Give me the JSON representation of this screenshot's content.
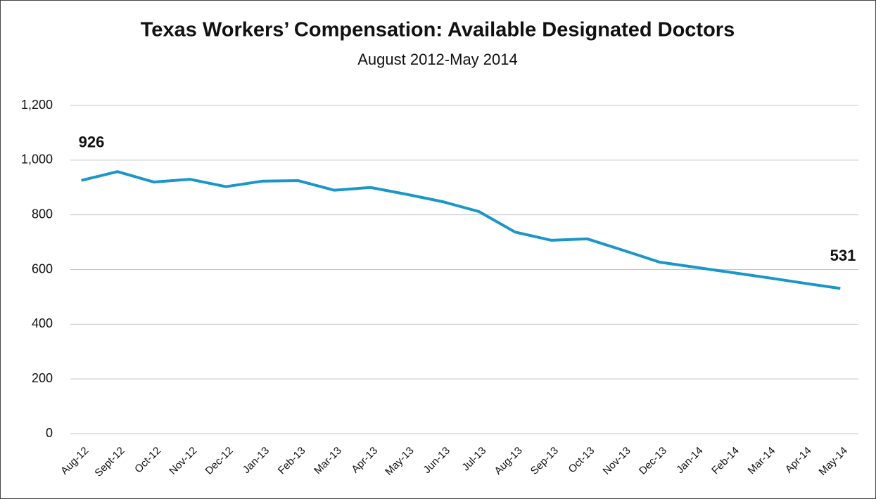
{
  "chart_data": {
    "type": "line",
    "title": "Texas Workers’ Compensation: Available Designated Doctors",
    "subtitle": "August 2012-May 2014",
    "categories": [
      "Aug-12",
      "Sept-12",
      "Oct-12",
      "Nov-12",
      "Dec-12",
      "Jan-13",
      "Feb-13",
      "Mar-13",
      "Apr-13",
      "May-13",
      "Jun-13",
      "Jul-13",
      "Aug-13",
      "Sep-13",
      "Oct-13",
      "Nov-13",
      "Dec-13",
      "Jan-14",
      "Feb-14",
      "Mar-14",
      "Apr-14",
      "May-14"
    ],
    "values": [
      926,
      958,
      920,
      930,
      903,
      923,
      925,
      890,
      900,
      875,
      848,
      812,
      737,
      707,
      712,
      670,
      627,
      608,
      589,
      570,
      550,
      531
    ],
    "color": "#1a96c8",
    "ylim": [
      0,
      1200
    ],
    "yticks": [
      0,
      200,
      400,
      600,
      800,
      {
        "value": 1000,
        "label": "1,000"
      },
      {
        "value": 1200,
        "label": "1,200"
      }
    ],
    "grid": true
  }
}
